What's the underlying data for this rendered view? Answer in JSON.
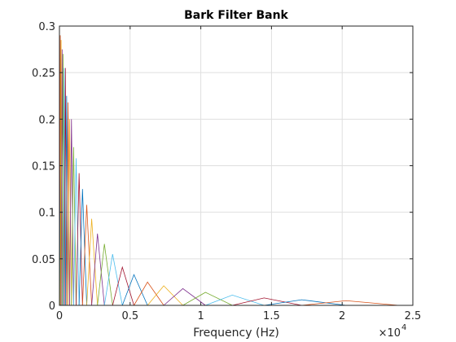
{
  "chart_data": {
    "type": "line",
    "title": "Bark Filter Bank",
    "xlabel": "Frequency (Hz)",
    "ylabel": "",
    "x_scale_note": {
      "base": "×10",
      "exponent": "4"
    },
    "xlim": [
      0,
      25000
    ],
    "ylim": [
      0,
      0.3
    ],
    "xticks": [
      0,
      5000,
      10000,
      15000,
      20000,
      25000
    ],
    "xtick_labels": [
      "0",
      "0.5",
      "1",
      "1.5",
      "2",
      "2.5"
    ],
    "yticks": [
      0,
      0.05,
      0.1,
      0.15,
      0.2,
      0.25,
      0.3
    ],
    "ytick_labels": [
      "0",
      "0.05",
      "0.1",
      "0.15",
      "0.2",
      "0.25",
      "0.3"
    ],
    "grid": true,
    "colors": [
      "#0072BD",
      "#D95319",
      "#EDB120",
      "#7E2F8E",
      "#77AC30",
      "#4DBEEE",
      "#A2142F"
    ],
    "filters": [
      {
        "center": 0,
        "upper": 60,
        "peak": 0.3
      },
      {
        "lower": 0,
        "center": 60,
        "upper": 120,
        "peak": 0.29
      },
      {
        "lower": 60,
        "center": 120,
        "upper": 190,
        "peak": 0.285
      },
      {
        "lower": 120,
        "center": 190,
        "upper": 260,
        "peak": 0.275
      },
      {
        "lower": 190,
        "center": 260,
        "upper": 340,
        "peak": 0.27
      },
      {
        "lower": 260,
        "center": 340,
        "upper": 420,
        "peak": 0.255
      },
      {
        "lower": 340,
        "center": 420,
        "upper": 510,
        "peak": 0.255
      },
      {
        "lower": 420,
        "center": 510,
        "upper": 610,
        "peak": 0.225
      },
      {
        "lower": 510,
        "center": 610,
        "upper": 720,
        "peak": 0.218
      },
      {
        "lower": 610,
        "center": 720,
        "upper": 850,
        "peak": 0.2
      },
      {
        "lower": 720,
        "center": 850,
        "upper": 1000,
        "peak": 0.2
      },
      {
        "lower": 850,
        "center": 1000,
        "upper": 1180,
        "peak": 0.17
      },
      {
        "lower": 1000,
        "center": 1180,
        "upper": 1390,
        "peak": 0.158
      },
      {
        "lower": 1180,
        "center": 1390,
        "upper": 1630,
        "peak": 0.142
      },
      {
        "lower": 1390,
        "center": 1630,
        "upper": 1930,
        "peak": 0.125
      },
      {
        "lower": 1630,
        "center": 1930,
        "upper": 2280,
        "peak": 0.108
      },
      {
        "lower": 1930,
        "center": 2280,
        "upper": 2690,
        "peak": 0.093
      },
      {
        "lower": 2280,
        "center": 2690,
        "upper": 3180,
        "peak": 0.077
      },
      {
        "lower": 2690,
        "center": 3180,
        "upper": 3760,
        "peak": 0.066
      },
      {
        "lower": 3180,
        "center": 3760,
        "upper": 4450,
        "peak": 0.055
      },
      {
        "lower": 3760,
        "center": 4450,
        "upper": 5270,
        "peak": 0.041
      },
      {
        "lower": 4450,
        "center": 5270,
        "upper": 6230,
        "peak": 0.033
      },
      {
        "lower": 5270,
        "center": 6230,
        "upper": 7380,
        "peak": 0.025
      },
      {
        "lower": 6230,
        "center": 7380,
        "upper": 8730,
        "peak": 0.021
      },
      {
        "lower": 7380,
        "center": 8730,
        "upper": 10330,
        "peak": 0.018
      },
      {
        "lower": 8730,
        "center": 10330,
        "upper": 12230,
        "peak": 0.014
      },
      {
        "lower": 10330,
        "center": 12230,
        "upper": 14480,
        "peak": 0.011
      },
      {
        "lower": 12230,
        "center": 14480,
        "upper": 17140,
        "peak": 0.008
      },
      {
        "lower": 14480,
        "center": 17140,
        "upper": 20280,
        "peak": 0.006
      },
      {
        "lower": 17140,
        "center": 20280,
        "upper": 24000,
        "peak": 0.005
      }
    ]
  }
}
